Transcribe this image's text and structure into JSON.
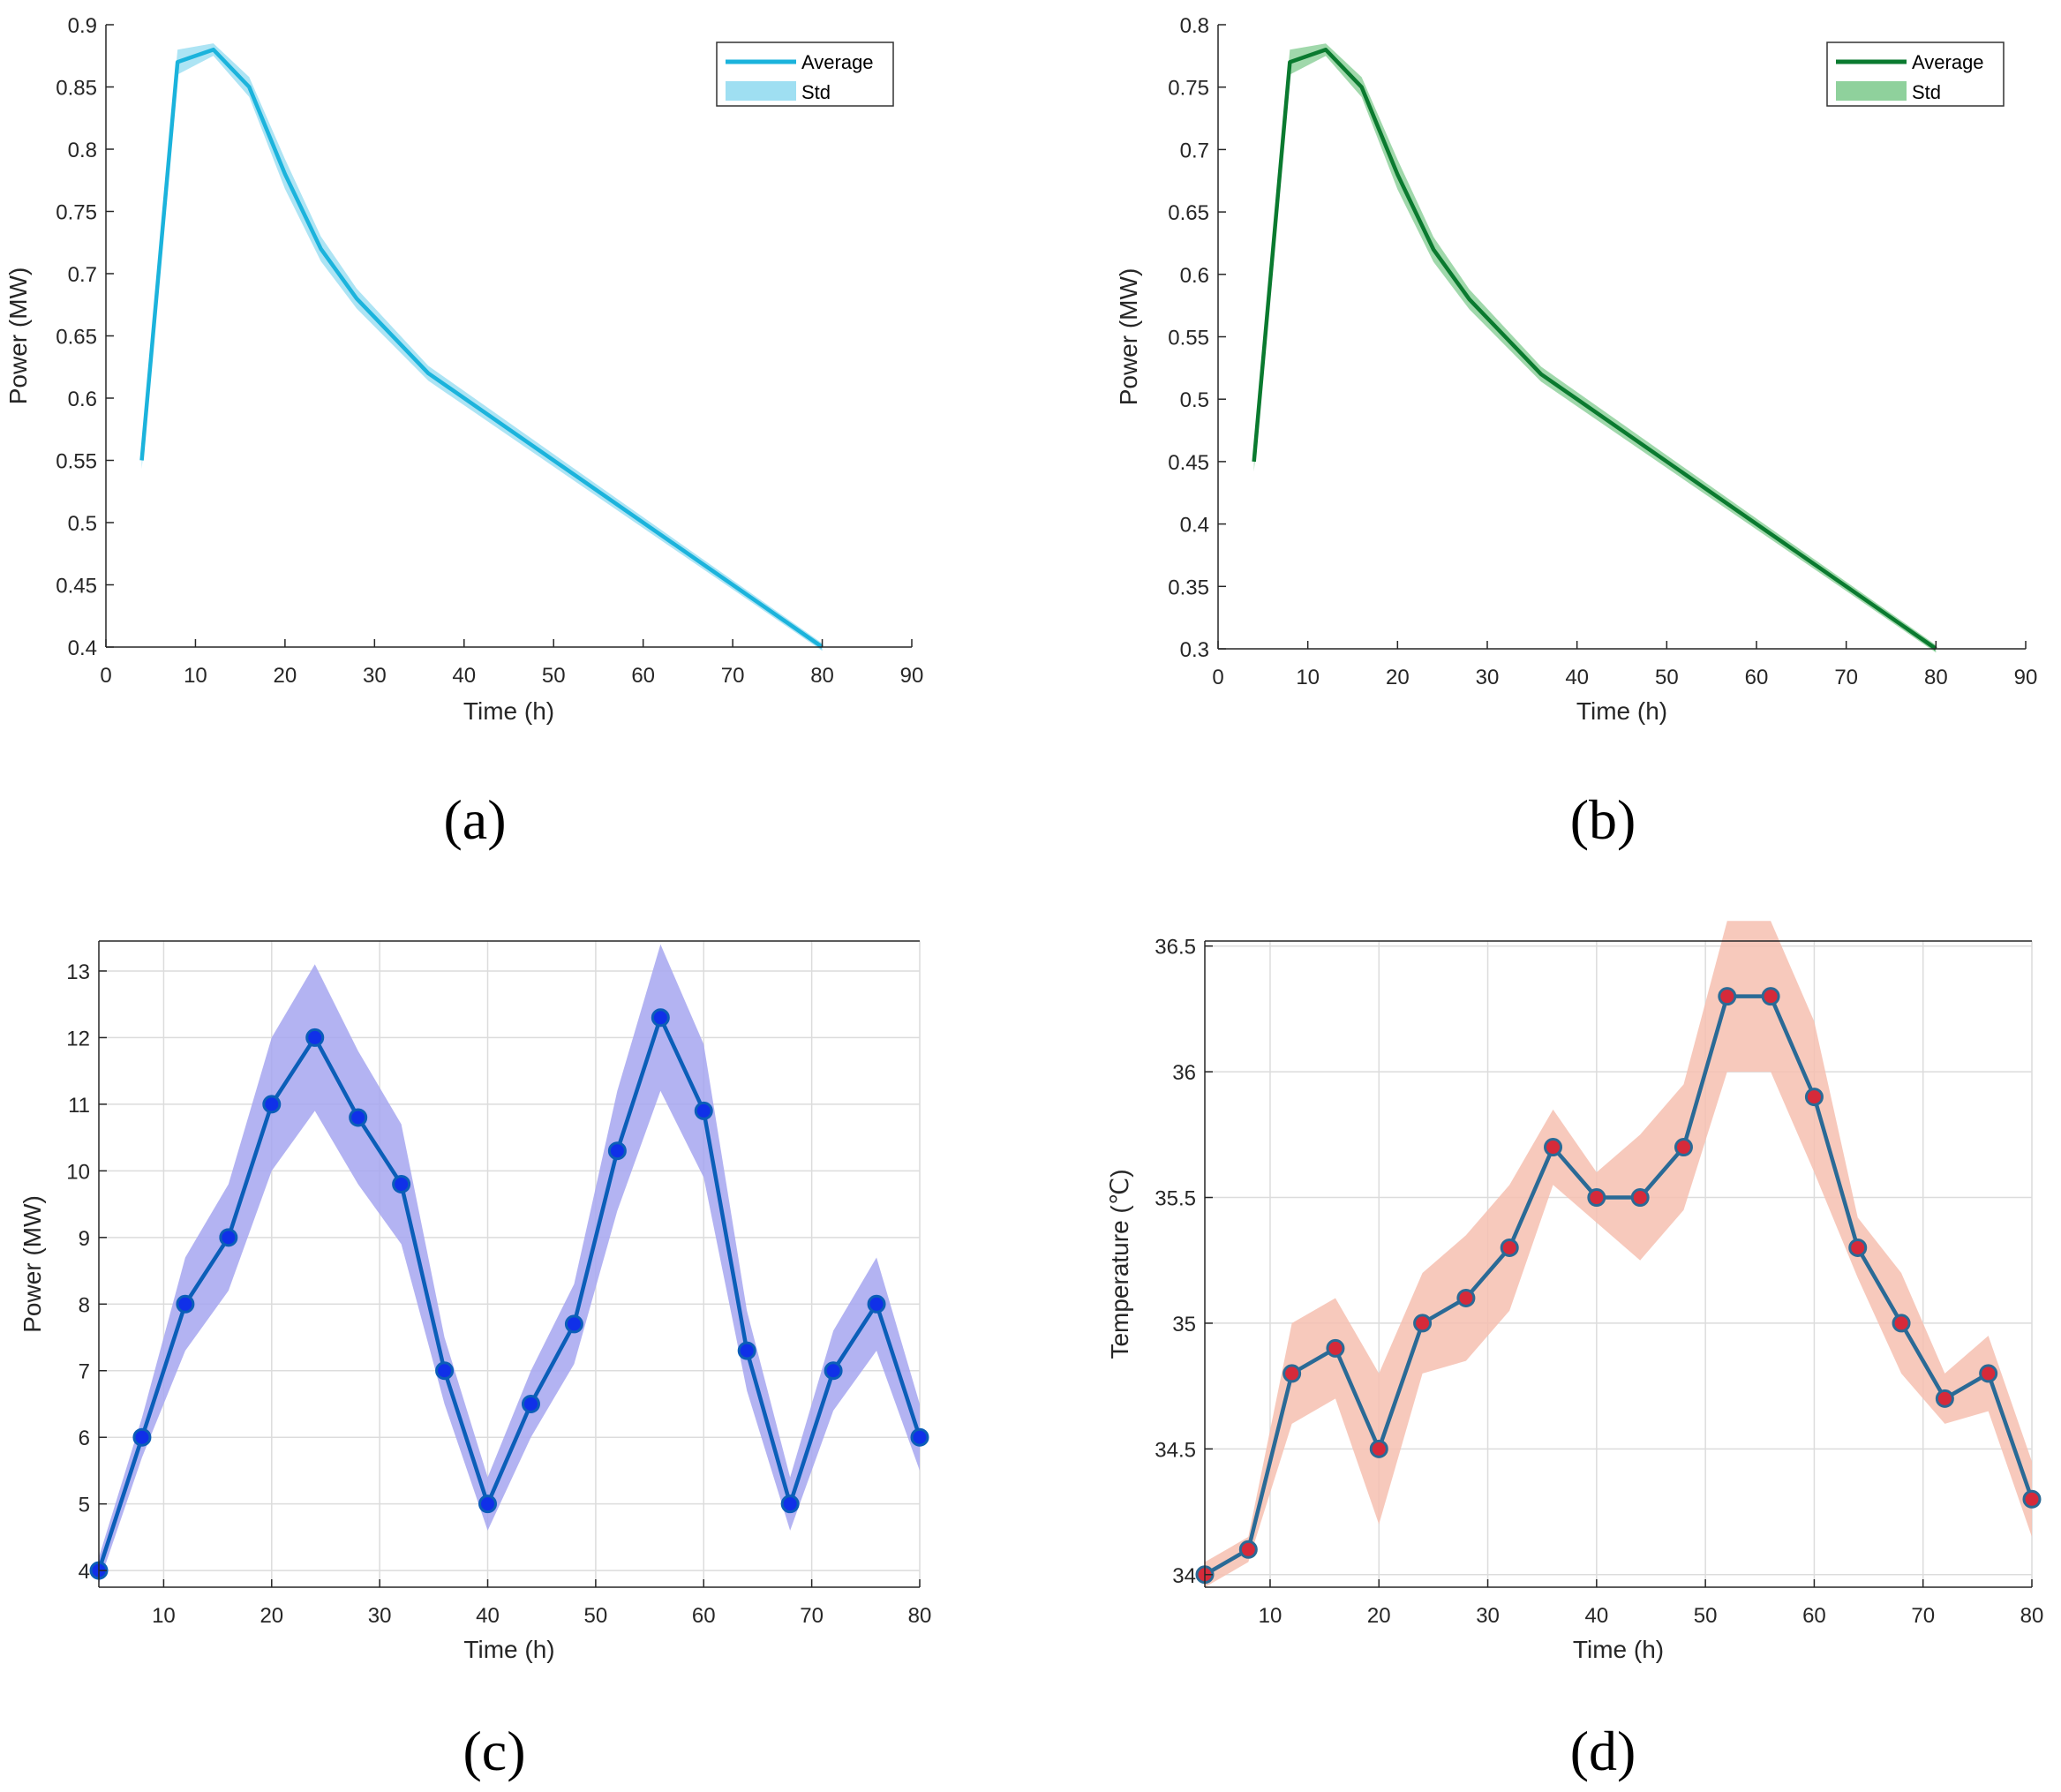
{
  "chart_data": [
    {
      "type": "line",
      "panel": "a",
      "xlabel": "Time (h)",
      "ylabel": "Power (MW)",
      "xlim": [
        0,
        90
      ],
      "ylim": [
        0.4,
        0.9
      ],
      "xticks": [
        0,
        10,
        20,
        30,
        40,
        50,
        60,
        70,
        80,
        90
      ],
      "yticks": [
        0.4,
        0.45,
        0.5,
        0.55,
        0.6,
        0.65,
        0.7,
        0.75,
        0.8,
        0.85,
        0.9
      ],
      "grid": false,
      "legend": [
        "Average",
        "Std"
      ],
      "legend_position": "top-right",
      "line_color": "#1bb3dc",
      "band_color": "#9fdff2",
      "x": [
        4,
        8,
        12,
        16,
        20,
        24,
        28,
        36,
        80
      ],
      "y": [
        0.55,
        0.87,
        0.88,
        0.85,
        0.78,
        0.72,
        0.68,
        0.62,
        0.4
      ],
      "band": [
        0.007,
        0.01,
        0.005,
        0.008,
        0.012,
        0.01,
        0.008,
        0.006,
        0.003
      ]
    },
    {
      "type": "line",
      "panel": "b",
      "xlabel": "Time (h)",
      "ylabel": "Power (MW)",
      "xlim": [
        0,
        90
      ],
      "ylim": [
        0.3,
        0.8
      ],
      "xticks": [
        0,
        10,
        20,
        30,
        40,
        50,
        60,
        70,
        80,
        90
      ],
      "yticks": [
        0.3,
        0.35,
        0.4,
        0.45,
        0.5,
        0.55,
        0.6,
        0.65,
        0.7,
        0.75,
        0.8
      ],
      "grid": false,
      "legend": [
        "Average",
        "Std"
      ],
      "legend_position": "top-right",
      "line_color": "#0a7a2f",
      "band_color": "#8fd19c",
      "x": [
        4,
        8,
        12,
        16,
        20,
        24,
        28,
        36,
        80
      ],
      "y": [
        0.45,
        0.77,
        0.78,
        0.75,
        0.68,
        0.62,
        0.58,
        0.52,
        0.3
      ],
      "band": [
        0.008,
        0.01,
        0.005,
        0.008,
        0.012,
        0.01,
        0.008,
        0.006,
        0.003
      ]
    },
    {
      "type": "line",
      "panel": "c",
      "xlabel": "Time (h)",
      "ylabel": "Power (MW)",
      "xlim": [
        4,
        80
      ],
      "ylim": [
        3.75,
        13.45
      ],
      "xticks": [
        10,
        20,
        30,
        40,
        50,
        60,
        70,
        80
      ],
      "yticks": [
        4,
        5,
        6,
        7,
        8,
        9,
        10,
        11,
        12,
        13
      ],
      "grid": true,
      "line_color": "#0b5eb8",
      "marker_color": "#1030e8",
      "band_color": "#a6a6f0",
      "x": [
        4,
        8,
        12,
        16,
        20,
        24,
        28,
        32,
        36,
        40,
        44,
        48,
        52,
        56,
        60,
        64,
        68,
        72,
        76,
        80
      ],
      "y": [
        4,
        6,
        8,
        9,
        11,
        12,
        10.8,
        9.8,
        7,
        5,
        6.5,
        7.7,
        10.3,
        12.3,
        10.9,
        7.3,
        5,
        7,
        8,
        6
      ],
      "band": [
        0.2,
        0.3,
        0.7,
        0.8,
        1.0,
        1.1,
        1.0,
        0.9,
        0.5,
        0.4,
        0.5,
        0.6,
        0.9,
        1.1,
        1.0,
        0.6,
        0.4,
        0.6,
        0.7,
        0.5
      ]
    },
    {
      "type": "line",
      "panel": "d",
      "xlabel": "Time (h)",
      "ylabel": "Temperature (℃)",
      "xlim": [
        4,
        80
      ],
      "ylim": [
        33.95,
        36.52
      ],
      "xticks": [
        10,
        20,
        30,
        40,
        50,
        60,
        70,
        80
      ],
      "yticks": [
        34,
        34.5,
        35,
        35.5,
        36,
        36.5
      ],
      "grid": true,
      "line_color": "#2a6a96",
      "marker_color": "#d62a3a",
      "band_color": "#f6bfb0",
      "x": [
        4,
        8,
        12,
        16,
        20,
        24,
        28,
        32,
        36,
        40,
        44,
        48,
        52,
        56,
        60,
        64,
        68,
        72,
        76,
        80
      ],
      "y": [
        34,
        34.1,
        34.8,
        34.9,
        34.5,
        35,
        35.1,
        35.3,
        35.7,
        35.5,
        35.5,
        35.7,
        36.3,
        36.3,
        35.9,
        35.3,
        35,
        34.7,
        34.8,
        34.3
      ],
      "band": [
        0.05,
        0.05,
        0.2,
        0.2,
        0.3,
        0.2,
        0.25,
        0.25,
        0.15,
        0.1,
        0.25,
        0.25,
        0.3,
        0.3,
        0.3,
        0.12,
        0.2,
        0.1,
        0.15,
        0.15
      ]
    }
  ],
  "panel_labels": [
    "(a)",
    "(b)",
    "(c)",
    "(d)"
  ]
}
